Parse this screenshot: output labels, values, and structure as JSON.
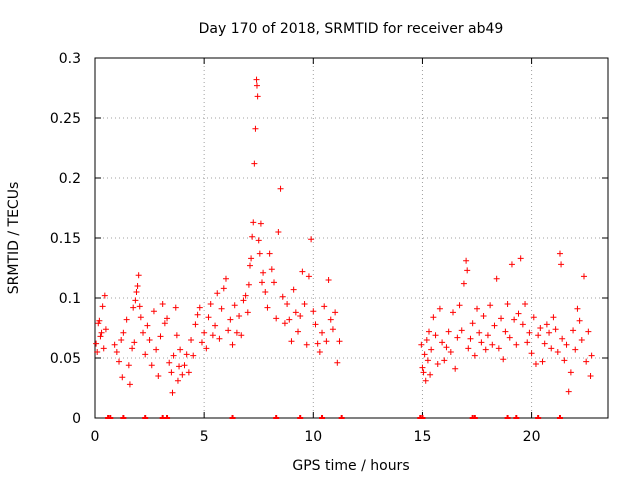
{
  "chart_data": {
    "type": "scatter",
    "title": "Day 170 of 2018, SRMTID for receiver ab49",
    "xlabel": "GPS time / hours",
    "ylabel": "SRMTID / TECUs",
    "xlim": [
      0,
      23.5
    ],
    "ylim": [
      0,
      0.3
    ],
    "xticks": [
      0,
      5,
      10,
      15,
      20
    ],
    "xtick_labels": [
      "0",
      "5",
      "10",
      "15",
      "20"
    ],
    "yticks": [
      0,
      0.05,
      0.1,
      0.15,
      0.2,
      0.25,
      0.3
    ],
    "ytick_labels": [
      "0",
      "0.05",
      "0.1",
      "0.15",
      "0.2",
      "0.25",
      "0.3"
    ],
    "grid": true,
    "marker": "+",
    "color": "#ff0000",
    "series": [
      {
        "name": "SRMTID",
        "points": [
          [
            0.05,
            0.062
          ],
          [
            0.1,
            0.055
          ],
          [
            0.15,
            0.079
          ],
          [
            0.2,
            0.081
          ],
          [
            0.25,
            0.068
          ],
          [
            0.3,
            0.071
          ],
          [
            0.35,
            0.093
          ],
          [
            0.4,
            0.058
          ],
          [
            0.45,
            0.102
          ],
          [
            0.5,
            0.074
          ],
          [
            0.9,
            0.061
          ],
          [
            1.0,
            0.055
          ],
          [
            1.1,
            0.047
          ],
          [
            1.2,
            0.065
          ],
          [
            1.25,
            0.034
          ],
          [
            1.3,
            0.071
          ],
          [
            1.45,
            0.082
          ],
          [
            1.55,
            0.044
          ],
          [
            1.6,
            0.028
          ],
          [
            1.7,
            0.058
          ],
          [
            1.75,
            0.092
          ],
          [
            1.8,
            0.063
          ],
          [
            1.85,
            0.098
          ],
          [
            1.9,
            0.105
          ],
          [
            1.95,
            0.11
          ],
          [
            2.0,
            0.119
          ],
          [
            2.05,
            0.093
          ],
          [
            2.1,
            0.084
          ],
          [
            2.2,
            0.071
          ],
          [
            2.3,
            0.053
          ],
          [
            2.4,
            0.077
          ],
          [
            2.5,
            0.065
          ],
          [
            2.6,
            0.044
          ],
          [
            2.7,
            0.089
          ],
          [
            2.8,
            0.057
          ],
          [
            2.9,
            0.035
          ],
          [
            3.0,
            0.068
          ],
          [
            3.1,
            0.095
          ],
          [
            3.2,
            0.079
          ],
          [
            3.3,
            0.083
          ],
          [
            3.4,
            0.046
          ],
          [
            3.5,
            0.038
          ],
          [
            3.55,
            0.021
          ],
          [
            3.6,
            0.052
          ],
          [
            3.7,
            0.092
          ],
          [
            3.75,
            0.069
          ],
          [
            3.8,
            0.031
          ],
          [
            3.85,
            0.043
          ],
          [
            3.9,
            0.057
          ],
          [
            4.0,
            0.036
          ],
          [
            4.1,
            0.044
          ],
          [
            4.2,
            0.053
          ],
          [
            4.3,
            0.038
          ],
          [
            4.4,
            0.065
          ],
          [
            4.5,
            0.052
          ],
          [
            4.6,
            0.078
          ],
          [
            4.7,
            0.086
          ],
          [
            4.8,
            0.092
          ],
          [
            4.9,
            0.063
          ],
          [
            5.0,
            0.071
          ],
          [
            5.1,
            0.058
          ],
          [
            5.2,
            0.084
          ],
          [
            5.3,
            0.095
          ],
          [
            5.4,
            0.069
          ],
          [
            5.5,
            0.077
          ],
          [
            5.6,
            0.104
          ],
          [
            5.7,
            0.066
          ],
          [
            5.8,
            0.091
          ],
          [
            5.9,
            0.108
          ],
          [
            6.0,
            0.116
          ],
          [
            6.1,
            0.073
          ],
          [
            6.2,
            0.082
          ],
          [
            6.3,
            0.061
          ],
          [
            6.4,
            0.094
          ],
          [
            6.5,
            0.071
          ],
          [
            6.6,
            0.085
          ],
          [
            6.7,
            0.069
          ],
          [
            6.8,
            0.098
          ],
          [
            6.9,
            0.102
          ],
          [
            7.0,
            0.088
          ],
          [
            7.05,
            0.111
          ],
          [
            7.1,
            0.127
          ],
          [
            7.15,
            0.133
          ],
          [
            7.2,
            0.151
          ],
          [
            7.25,
            0.163
          ],
          [
            7.3,
            0.212
          ],
          [
            7.35,
            0.241
          ],
          [
            7.4,
            0.282
          ],
          [
            7.42,
            0.277
          ],
          [
            7.45,
            0.268
          ],
          [
            7.5,
            0.148
          ],
          [
            7.55,
            0.137
          ],
          [
            7.6,
            0.162
          ],
          [
            7.65,
            0.113
          ],
          [
            7.7,
            0.121
          ],
          [
            7.8,
            0.105
          ],
          [
            7.9,
            0.092
          ],
          [
            8.0,
            0.137
          ],
          [
            8.1,
            0.124
          ],
          [
            8.2,
            0.113
          ],
          [
            8.3,
            0.083
          ],
          [
            8.4,
            0.155
          ],
          [
            8.5,
            0.191
          ],
          [
            8.6,
            0.101
          ],
          [
            8.7,
            0.079
          ],
          [
            8.8,
            0.095
          ],
          [
            8.9,
            0.082
          ],
          [
            9.0,
            0.064
          ],
          [
            9.1,
            0.107
          ],
          [
            9.2,
            0.088
          ],
          [
            9.3,
            0.072
          ],
          [
            9.4,
            0.085
          ],
          [
            9.5,
            0.122
          ],
          [
            9.6,
            0.095
          ],
          [
            9.7,
            0.061
          ],
          [
            9.8,
            0.118
          ],
          [
            9.9,
            0.149
          ],
          [
            10.0,
            0.089
          ],
          [
            10.1,
            0.078
          ],
          [
            10.2,
            0.062
          ],
          [
            10.3,
            0.055
          ],
          [
            10.4,
            0.071
          ],
          [
            10.5,
            0.093
          ],
          [
            10.6,
            0.064
          ],
          [
            10.7,
            0.115
          ],
          [
            10.8,
            0.082
          ],
          [
            10.9,
            0.074
          ],
          [
            11.0,
            0.088
          ],
          [
            11.1,
            0.046
          ],
          [
            11.2,
            0.064
          ],
          [
            14.95,
            0.061
          ],
          [
            15.0,
            0.042
          ],
          [
            15.05,
            0.038
          ],
          [
            15.1,
            0.053
          ],
          [
            15.15,
            0.031
          ],
          [
            15.2,
            0.065
          ],
          [
            15.25,
            0.048
          ],
          [
            15.3,
            0.072
          ],
          [
            15.35,
            0.036
          ],
          [
            15.4,
            0.057
          ],
          [
            15.5,
            0.084
          ],
          [
            15.6,
            0.069
          ],
          [
            15.7,
            0.045
          ],
          [
            15.8,
            0.091
          ],
          [
            15.9,
            0.063
          ],
          [
            16.0,
            0.048
          ],
          [
            16.1,
            0.059
          ],
          [
            16.2,
            0.072
          ],
          [
            16.3,
            0.055
          ],
          [
            16.4,
            0.088
          ],
          [
            16.5,
            0.041
          ],
          [
            16.6,
            0.067
          ],
          [
            16.7,
            0.094
          ],
          [
            16.8,
            0.073
          ],
          [
            16.9,
            0.112
          ],
          [
            17.0,
            0.131
          ],
          [
            17.05,
            0.123
          ],
          [
            17.1,
            0.058
          ],
          [
            17.2,
            0.066
          ],
          [
            17.3,
            0.079
          ],
          [
            17.4,
            0.052
          ],
          [
            17.5,
            0.091
          ],
          [
            17.6,
            0.071
          ],
          [
            17.7,
            0.063
          ],
          [
            17.8,
            0.085
          ],
          [
            17.9,
            0.057
          ],
          [
            18.0,
            0.069
          ],
          [
            18.1,
            0.094
          ],
          [
            18.2,
            0.061
          ],
          [
            18.3,
            0.077
          ],
          [
            18.4,
            0.116
          ],
          [
            18.5,
            0.058
          ],
          [
            18.6,
            0.083
          ],
          [
            18.7,
            0.049
          ],
          [
            18.8,
            0.072
          ],
          [
            18.9,
            0.095
          ],
          [
            19.0,
            0.067
          ],
          [
            19.1,
            0.128
          ],
          [
            19.2,
            0.082
          ],
          [
            19.3,
            0.061
          ],
          [
            19.4,
            0.087
          ],
          [
            19.5,
            0.133
          ],
          [
            19.6,
            0.078
          ],
          [
            19.7,
            0.095
          ],
          [
            19.8,
            0.063
          ],
          [
            19.9,
            0.071
          ],
          [
            20.0,
            0.054
          ],
          [
            20.1,
            0.084
          ],
          [
            20.2,
            0.045
          ],
          [
            20.3,
            0.069
          ],
          [
            20.4,
            0.075
          ],
          [
            20.5,
            0.047
          ],
          [
            20.6,
            0.062
          ],
          [
            20.7,
            0.078
          ],
          [
            20.8,
            0.071
          ],
          [
            20.9,
            0.058
          ],
          [
            21.0,
            0.084
          ],
          [
            21.1,
            0.074
          ],
          [
            21.2,
            0.055
          ],
          [
            21.3,
            0.137
          ],
          [
            21.35,
            0.128
          ],
          [
            21.4,
            0.066
          ],
          [
            21.5,
            0.048
          ],
          [
            21.6,
            0.061
          ],
          [
            21.7,
            0.022
          ],
          [
            21.8,
            0.038
          ],
          [
            21.9,
            0.073
          ],
          [
            22.0,
            0.057
          ],
          [
            22.1,
            0.091
          ],
          [
            22.2,
            0.081
          ],
          [
            22.3,
            0.065
          ],
          [
            22.4,
            0.118
          ],
          [
            22.5,
            0.047
          ],
          [
            22.6,
            0.072
          ],
          [
            22.7,
            0.035
          ],
          [
            22.75,
            0.052
          ]
        ]
      }
    ],
    "zero_markers_x": [
      0.6,
      0.7,
      1.3,
      2.3,
      3.1,
      3.3,
      6.3,
      8.3,
      9.4,
      10.4,
      11.3,
      14.9,
      15.0,
      17.3,
      17.4,
      18.9,
      19.3,
      20.3,
      21.3
    ]
  }
}
